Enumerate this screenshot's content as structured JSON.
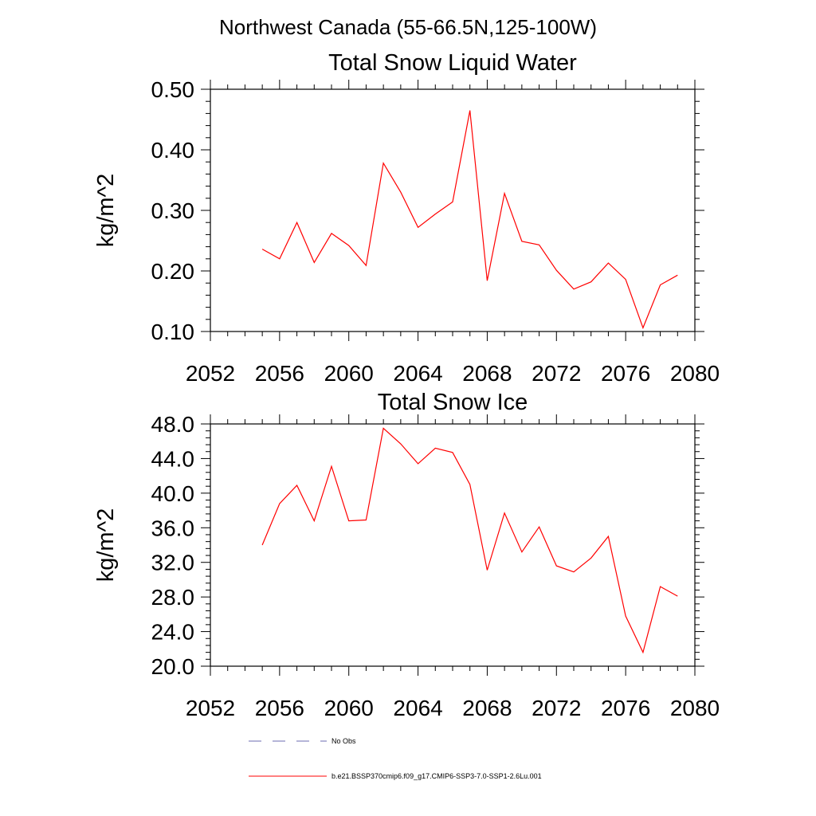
{
  "figure_title": "Northwest Canada (55-66.5N,125-100W)",
  "chart_data": [
    {
      "type": "line",
      "title": "Total Snow Liquid Water",
      "xlabel": "",
      "ylabel": "kg/m^2",
      "xlim": [
        2052,
        2080
      ],
      "ylim": [
        0.1,
        0.5
      ],
      "x_ticks": [
        2052,
        2056,
        2060,
        2064,
        2068,
        2072,
        2076,
        2080
      ],
      "x_tick_labels": [
        "2052",
        "2056",
        "2060",
        "2064",
        "2068",
        "2072",
        "2076",
        "2080"
      ],
      "y_ticks": [
        0.1,
        0.2,
        0.3,
        0.4,
        0.5
      ],
      "y_tick_labels": [
        "0.10",
        "0.20",
        "0.30",
        "0.40",
        "0.50"
      ],
      "grid": false,
      "series": [
        {
          "name": "b.e21.BSSP370cmip6.f09_g17.CMIP6-SSP3-7.0-SSP1-2.6Lu.001",
          "color": "#ff0000",
          "x": [
            2055,
            2056,
            2057,
            2058,
            2059,
            2060,
            2061,
            2062,
            2063,
            2064,
            2065,
            2066,
            2067,
            2068,
            2069,
            2070,
            2071,
            2072,
            2073,
            2074,
            2075,
            2076,
            2077,
            2078,
            2079
          ],
          "values": [
            0.236,
            0.22,
            0.28,
            0.214,
            0.262,
            0.242,
            0.209,
            0.378,
            0.33,
            0.272,
            0.294,
            0.314,
            0.465,
            0.184,
            0.328,
            0.249,
            0.243,
            0.201,
            0.17,
            0.182,
            0.213,
            0.186,
            0.106,
            0.177,
            0.193
          ]
        }
      ]
    },
    {
      "type": "line",
      "title": "Total Snow Ice",
      "xlabel": "",
      "ylabel": "kg/m^2",
      "xlim": [
        2052,
        2080
      ],
      "ylim": [
        20.0,
        48.0
      ],
      "x_ticks": [
        2052,
        2056,
        2060,
        2064,
        2068,
        2072,
        2076,
        2080
      ],
      "x_tick_labels": [
        "2052",
        "2056",
        "2060",
        "2064",
        "2068",
        "2072",
        "2076",
        "2080"
      ],
      "y_ticks": [
        20.0,
        24.0,
        28.0,
        32.0,
        36.0,
        40.0,
        44.0,
        48.0
      ],
      "y_tick_labels": [
        "20.0",
        "24.0",
        "28.0",
        "32.0",
        "36.0",
        "40.0",
        "44.0",
        "48.0"
      ],
      "grid": false,
      "series": [
        {
          "name": "b.e21.BSSP370cmip6.f09_g17.CMIP6-SSP3-7.0-SSP1-2.6Lu.001",
          "color": "#ff0000",
          "x": [
            2055,
            2056,
            2057,
            2058,
            2059,
            2060,
            2061,
            2062,
            2063,
            2064,
            2065,
            2066,
            2067,
            2068,
            2069,
            2070,
            2071,
            2072,
            2073,
            2074,
            2075,
            2076,
            2077,
            2078,
            2079
          ],
          "values": [
            34.0,
            38.8,
            40.9,
            36.8,
            43.1,
            36.8,
            36.9,
            47.5,
            45.7,
            43.4,
            45.2,
            44.7,
            41.0,
            31.1,
            37.7,
            33.2,
            36.1,
            31.6,
            30.9,
            32.5,
            35.0,
            25.8,
            21.6,
            29.2,
            28.1
          ]
        }
      ]
    }
  ],
  "legend": {
    "placement": "bottom",
    "items": [
      {
        "label": "No Obs",
        "color": "#6b6bb0",
        "style": "dashed"
      },
      {
        "label": "b.e21.BSSP370cmip6.f09_g17.CMIP6-SSP3-7.0-SSP1-2.6Lu.001",
        "color": "#ff0000",
        "style": "solid"
      }
    ]
  }
}
